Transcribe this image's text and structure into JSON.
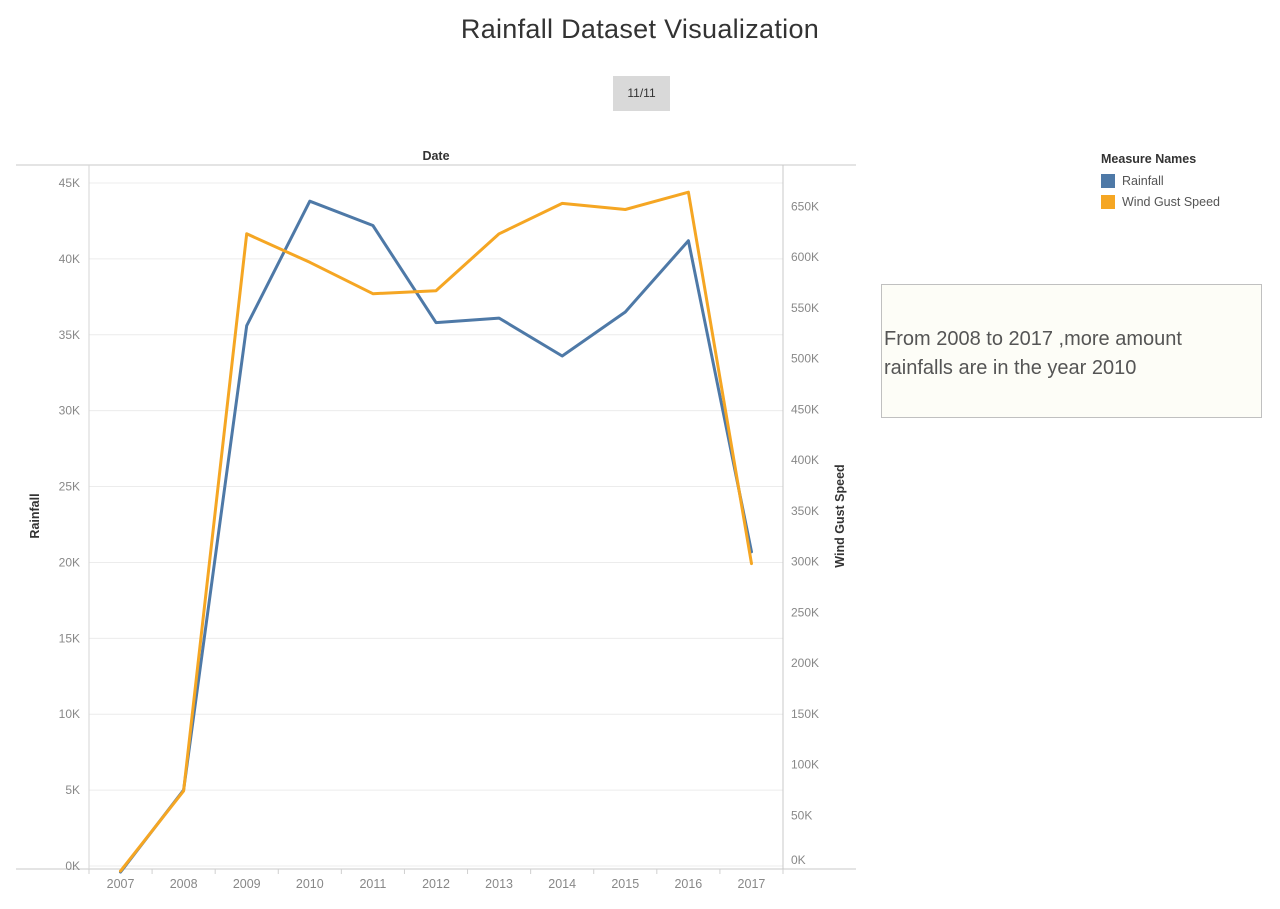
{
  "title": "Rainfall Dataset Visualization",
  "page_indicator": "11/11",
  "legend": {
    "title": "Measure Names",
    "items": [
      {
        "label": "Rainfall",
        "color": "#4e79a7"
      },
      {
        "label": "Wind Gust Speed",
        "color": "#f5a623"
      }
    ]
  },
  "annotation": "From 2008 to 2017 ,more amount rainfalls are in the year 2010",
  "chart_data": {
    "type": "line",
    "title": "Rainfall Dataset Visualization",
    "xlabel": "Date",
    "ylabel": "Rainfall",
    "y2label": "Wind Gust Speed",
    "categories": [
      "2007",
      "2008",
      "2009",
      "2010",
      "2011",
      "2012",
      "2013",
      "2014",
      "2015",
      "2016",
      "2017"
    ],
    "ylim": [
      0,
      45000
    ],
    "y2lim": [
      0,
      680000
    ],
    "yticks": [
      0,
      5000,
      10000,
      15000,
      20000,
      25000,
      30000,
      35000,
      40000,
      45000
    ],
    "ytick_labels": [
      "0K",
      "5K",
      "10K",
      "15K",
      "20K",
      "25K",
      "30K",
      "35K",
      "40K",
      "45K"
    ],
    "y2ticks": [
      0,
      50000,
      100000,
      150000,
      200000,
      250000,
      300000,
      350000,
      400000,
      450000,
      500000,
      550000,
      600000,
      650000
    ],
    "y2tick_labels": [
      "0K",
      "50K",
      "100K",
      "150K",
      "200K",
      "250K",
      "300K",
      "350K",
      "400K",
      "450K",
      "500K",
      "550K",
      "600K",
      "650K"
    ],
    "grid": true,
    "legend_position": "top-right",
    "series": [
      {
        "name": "Rainfall",
        "axis": "left",
        "color": "#4e79a7",
        "values": [
          -400,
          5000,
          35600,
          43800,
          42200,
          35800,
          36100,
          33600,
          36500,
          41200,
          20700
        ]
      },
      {
        "name": "Wind Gust Speed",
        "axis": "right",
        "color": "#f5a623",
        "values": [
          -5000,
          74000,
          623000,
          595000,
          564000,
          567000,
          623000,
          653000,
          647000,
          664000,
          298000
        ]
      }
    ]
  }
}
